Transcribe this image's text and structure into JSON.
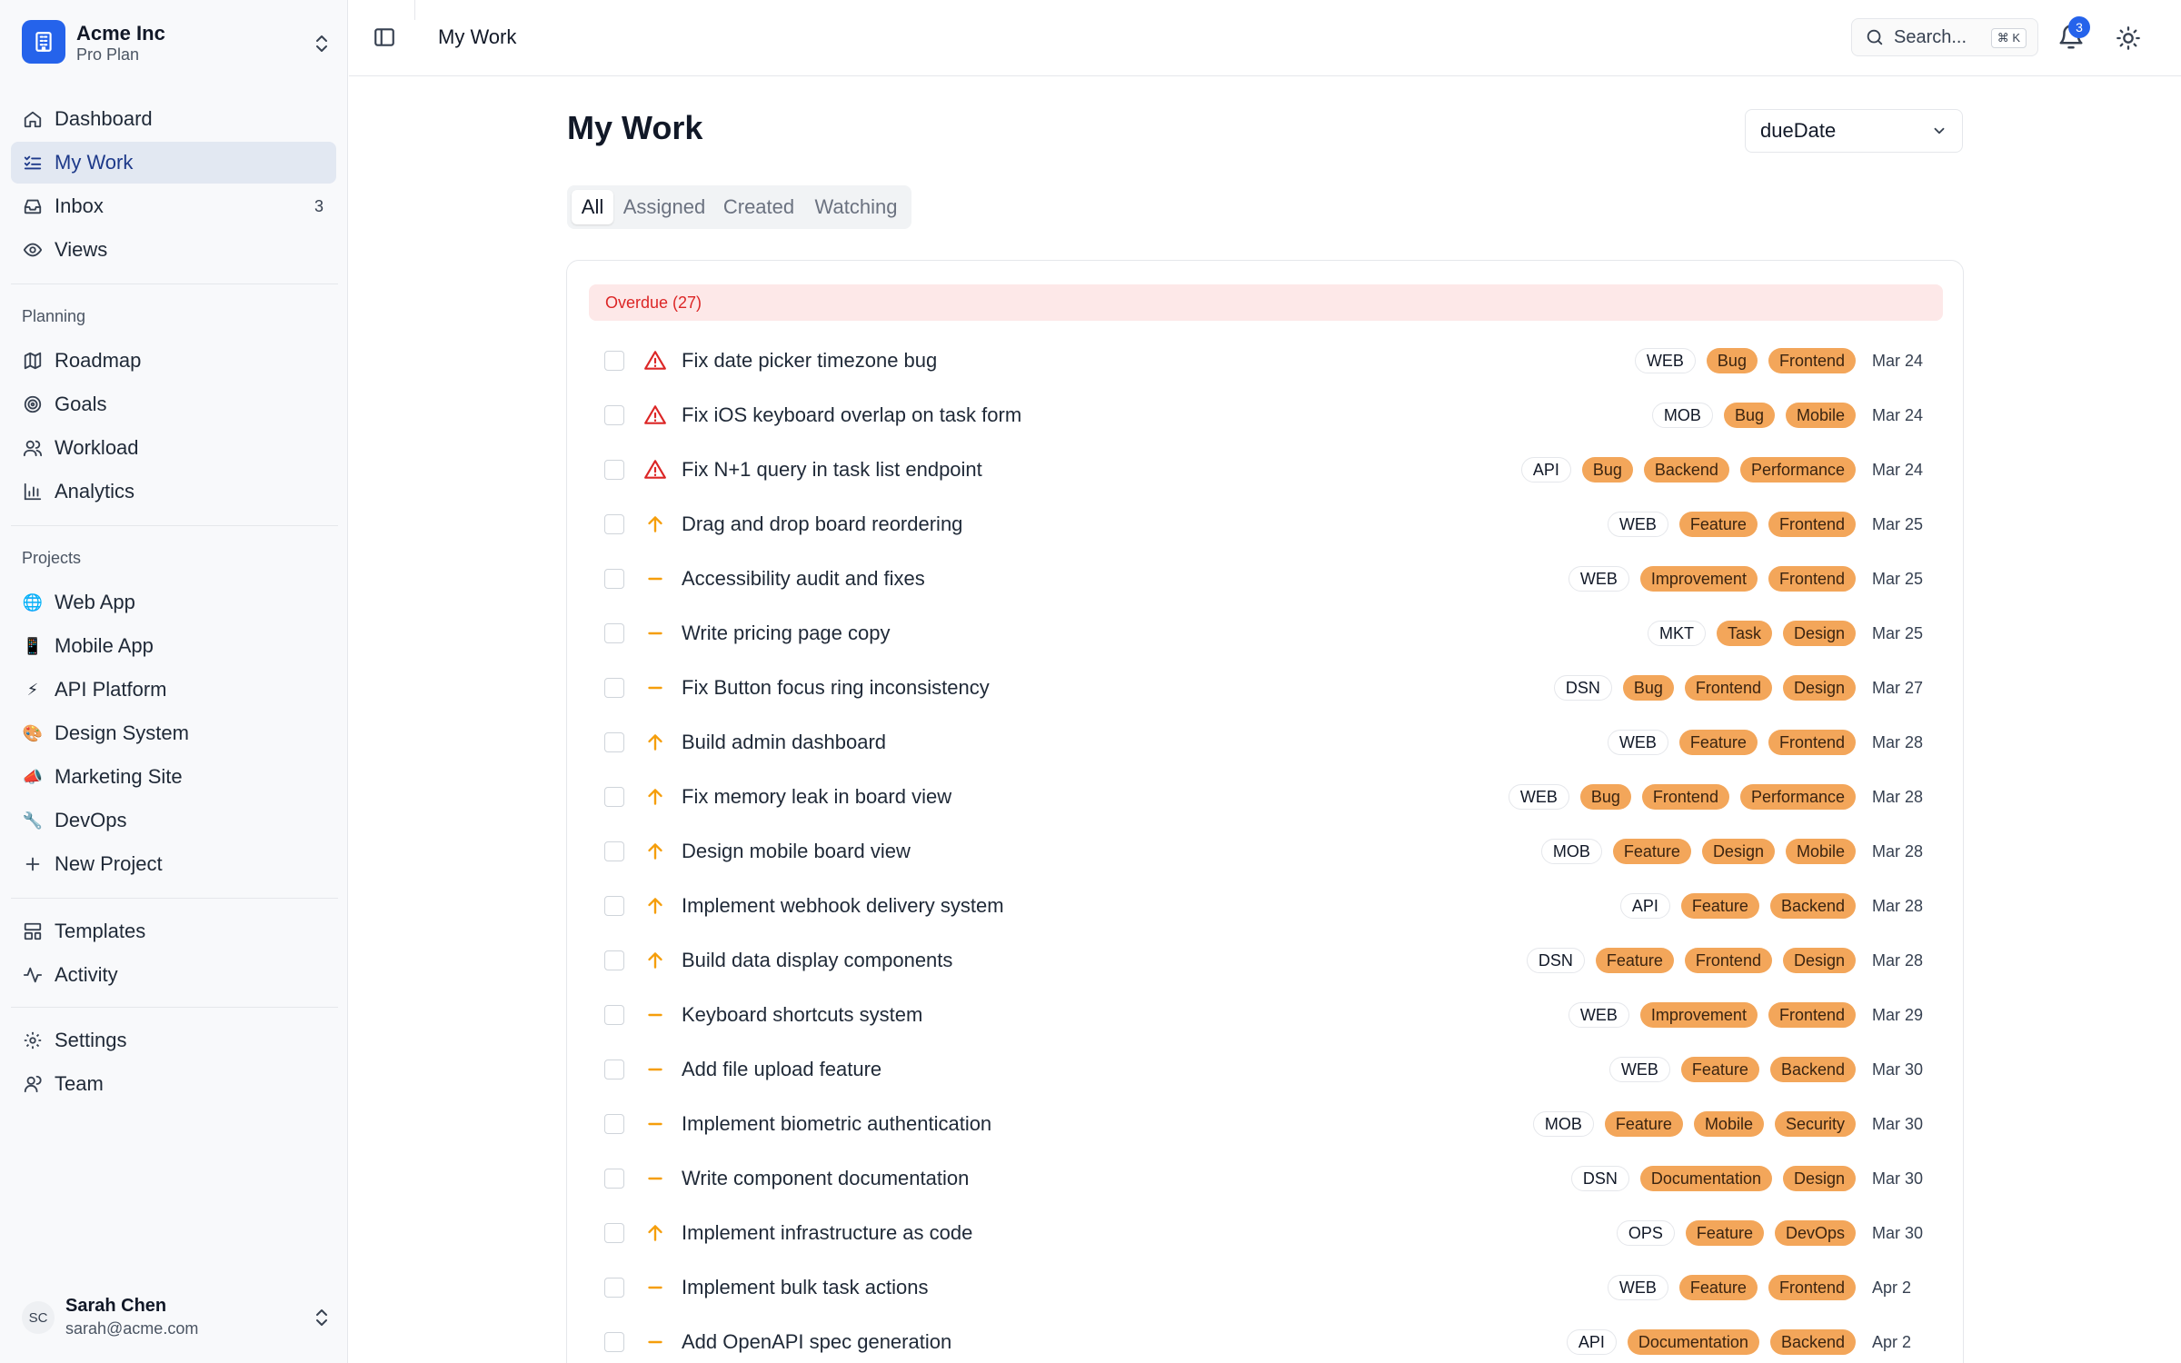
{
  "workspace": {
    "name": "Acme Inc",
    "plan": "Pro Plan"
  },
  "nav": {
    "main": [
      {
        "label": "Dashboard",
        "icon": "home-icon"
      },
      {
        "label": "My Work",
        "icon": "list-check-icon",
        "active": true
      },
      {
        "label": "Inbox",
        "icon": "inbox-icon",
        "count": "3"
      },
      {
        "label": "Views",
        "icon": "eye-icon"
      }
    ],
    "planning_label": "Planning",
    "planning": [
      {
        "label": "Roadmap",
        "icon": "map-icon"
      },
      {
        "label": "Goals",
        "icon": "target-icon"
      },
      {
        "label": "Workload",
        "icon": "users-icon"
      },
      {
        "label": "Analytics",
        "icon": "bar-chart-icon"
      }
    ],
    "projects_label": "Projects",
    "projects": [
      {
        "label": "Web App",
        "emoji": "🌐"
      },
      {
        "label": "Mobile App",
        "emoji": "📱"
      },
      {
        "label": "API Platform",
        "emoji": "⚡"
      },
      {
        "label": "Design System",
        "emoji": "🎨"
      },
      {
        "label": "Marketing Site",
        "emoji": "📣"
      },
      {
        "label": "DevOps",
        "emoji": "🔧"
      }
    ],
    "new_project": "New Project",
    "secondary": [
      {
        "label": "Templates",
        "icon": "templates-icon"
      },
      {
        "label": "Activity",
        "icon": "activity-icon"
      }
    ],
    "footer": [
      {
        "label": "Settings",
        "icon": "gear-icon"
      },
      {
        "label": "Team",
        "icon": "team-icon"
      }
    ]
  },
  "user": {
    "initials": "SC",
    "name": "Sarah Chen",
    "email": "sarah@acme.com"
  },
  "header": {
    "title": "My Work",
    "search_label": "Search...",
    "search_shortcut": "⌘ K",
    "notification_count": "3"
  },
  "main": {
    "title": "My Work",
    "sort_value": "dueDate",
    "tabs": [
      "All",
      "Assigned",
      "Created",
      "Watching"
    ],
    "active_tab": "All",
    "group_label": "Overdue (27)"
  },
  "colors": {
    "accent": "#2563eb",
    "overdue_bg": "#fde8e8",
    "overdue_text": "#dc2626",
    "tag_bg": "#f3a65a",
    "priority": "#f59e0b",
    "urgent": "#dc2626"
  },
  "tasks": [
    {
      "title": "Fix date picker timezone bug",
      "priority": "urgent",
      "project": "WEB",
      "labels": [
        "Bug",
        "Frontend"
      ],
      "due": "Mar 24"
    },
    {
      "title": "Fix iOS keyboard overlap on task form",
      "priority": "urgent",
      "project": "MOB",
      "labels": [
        "Bug",
        "Mobile"
      ],
      "due": "Mar 24"
    },
    {
      "title": "Fix N+1 query in task list endpoint",
      "priority": "urgent",
      "project": "API",
      "labels": [
        "Bug",
        "Backend",
        "Performance"
      ],
      "due": "Mar 24"
    },
    {
      "title": "Drag and drop board reordering",
      "priority": "high",
      "project": "WEB",
      "labels": [
        "Feature",
        "Frontend"
      ],
      "due": "Mar 25"
    },
    {
      "title": "Accessibility audit and fixes",
      "priority": "medium",
      "project": "WEB",
      "labels": [
        "Improvement",
        "Frontend"
      ],
      "due": "Mar 25"
    },
    {
      "title": "Write pricing page copy",
      "priority": "medium",
      "project": "MKT",
      "labels": [
        "Task",
        "Design"
      ],
      "due": "Mar 25"
    },
    {
      "title": "Fix Button focus ring inconsistency",
      "priority": "medium",
      "project": "DSN",
      "labels": [
        "Bug",
        "Frontend",
        "Design"
      ],
      "due": "Mar 27"
    },
    {
      "title": "Build admin dashboard",
      "priority": "high",
      "project": "WEB",
      "labels": [
        "Feature",
        "Frontend"
      ],
      "due": "Mar 28"
    },
    {
      "title": "Fix memory leak in board view",
      "priority": "high",
      "project": "WEB",
      "labels": [
        "Bug",
        "Frontend",
        "Performance"
      ],
      "due": "Mar 28"
    },
    {
      "title": "Design mobile board view",
      "priority": "high",
      "project": "MOB",
      "labels": [
        "Feature",
        "Design",
        "Mobile"
      ],
      "due": "Mar 28"
    },
    {
      "title": "Implement webhook delivery system",
      "priority": "high",
      "project": "API",
      "labels": [
        "Feature",
        "Backend"
      ],
      "due": "Mar 28"
    },
    {
      "title": "Build data display components",
      "priority": "high",
      "project": "DSN",
      "labels": [
        "Feature",
        "Frontend",
        "Design"
      ],
      "due": "Mar 28"
    },
    {
      "title": "Keyboard shortcuts system",
      "priority": "medium",
      "project": "WEB",
      "labels": [
        "Improvement",
        "Frontend"
      ],
      "due": "Mar 29"
    },
    {
      "title": "Add file upload feature",
      "priority": "medium",
      "project": "WEB",
      "labels": [
        "Feature",
        "Backend"
      ],
      "due": "Mar 30"
    },
    {
      "title": "Implement biometric authentication",
      "priority": "medium",
      "project": "MOB",
      "labels": [
        "Feature",
        "Mobile",
        "Security"
      ],
      "due": "Mar 30"
    },
    {
      "title": "Write component documentation",
      "priority": "medium",
      "project": "DSN",
      "labels": [
        "Documentation",
        "Design"
      ],
      "due": "Mar 30"
    },
    {
      "title": "Implement infrastructure as code",
      "priority": "high",
      "project": "OPS",
      "labels": [
        "Feature",
        "DevOps"
      ],
      "due": "Mar 30"
    },
    {
      "title": "Implement bulk task actions",
      "priority": "medium",
      "project": "WEB",
      "labels": [
        "Feature",
        "Frontend"
      ],
      "due": "Apr 2"
    },
    {
      "title": "Add OpenAPI spec generation",
      "priority": "medium",
      "project": "API",
      "labels": [
        "Documentation",
        "Backend"
      ],
      "due": "Apr 2"
    }
  ]
}
